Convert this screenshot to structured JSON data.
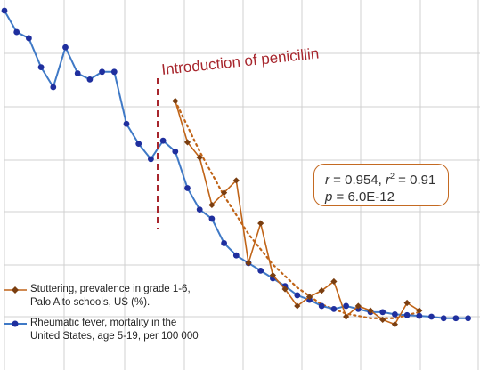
{
  "chart_data": {
    "type": "line",
    "annotation": "Introduction of penicillin",
    "stats": {
      "r": "0.954",
      "r2": "0.91",
      "p": "6.0E-12"
    },
    "grid": true,
    "legend_position": "bottom-left",
    "series": [
      {
        "name": "Rheumatic fever, mortality in the United States, age 5-19, per 100 000",
        "color": "#3f79c6",
        "marker": "circle",
        "x": [
          0,
          1,
          2,
          3,
          4,
          5,
          6,
          7,
          8,
          9,
          10,
          11,
          12,
          13,
          14,
          15,
          16,
          17,
          18,
          19,
          20,
          21,
          22,
          23,
          24,
          25,
          26,
          27,
          28,
          29,
          30,
          31,
          32,
          33,
          34,
          35,
          36,
          37,
          38
        ],
        "y": [
          2.0,
          1.86,
          1.82,
          1.63,
          1.5,
          1.76,
          1.59,
          1.55,
          1.6,
          1.6,
          1.26,
          1.13,
          1.03,
          1.15,
          1.08,
          0.84,
          0.7,
          0.64,
          0.48,
          0.4,
          0.35,
          0.3,
          0.25,
          0.2,
          0.14,
          0.11,
          0.07,
          0.05,
          0.07,
          0.05,
          0.03,
          0.03,
          0.015,
          0.01,
          0.005,
          0.0,
          -0.01,
          -0.01,
          -0.01
        ]
      },
      {
        "name": "Stuttering, prevalence in grade 1-6,\nPalo Alto schools, US (%).",
        "color": "#c06418",
        "marker": "diamond",
        "x": [
          14,
          15,
          16,
          17,
          18,
          19,
          20,
          21,
          22,
          23,
          24,
          25,
          26,
          27,
          28,
          29,
          30,
          31,
          32,
          33,
          34
        ],
        "y": [
          1.41,
          1.14,
          1.04,
          0.73,
          0.81,
          0.89,
          0.35,
          0.61,
          0.27,
          0.18,
          0.07,
          0.13,
          0.17,
          0.23,
          0.0,
          0.07,
          0.04,
          -0.02,
          -0.05,
          0.09,
          0.04
        ]
      }
    ],
    "trend": {
      "x": [
        14,
        16,
        18,
        20,
        22,
        24,
        26,
        28,
        30,
        32,
        34
      ],
      "y": [
        1.41,
        1.08,
        0.79,
        0.54,
        0.34,
        0.19,
        0.08,
        0.02,
        -0.01,
        -0.01,
        0.03
      ]
    }
  },
  "legend": {
    "stuttering": "Stuttering, prevalence in grade 1-6,\nPalo Alto schools, US (%).",
    "rheumatic": "Rheumatic fever, mortality in the\nUnited States, age 5-19, per 100 000"
  },
  "colors": {
    "blue": "#3f79c6",
    "blue_marker": "#1f2f9e",
    "orange": "#c06418",
    "orange_marker": "#7a3e10",
    "red_dash": "#a7262d",
    "grid": "#d0d0d0"
  }
}
